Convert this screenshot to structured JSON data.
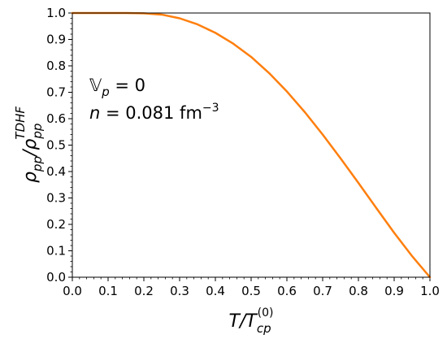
{
  "chart_data": {
    "type": "line",
    "title": "",
    "xlabel": "T/T",
    "xlabel_sub": "cp",
    "xlabel_sup": "(0)",
    "ylabel": "ρ",
    "ylabel_sub": "pp",
    "ylabel_slash": "/ρ",
    "ylabel_sub2": "pp",
    "ylabel_sup2": "TDHF",
    "xlim": [
      0.0,
      1.0
    ],
    "ylim": [
      0.0,
      1.0
    ],
    "grid": false,
    "legend": "none",
    "x_ticks": [
      "0.0",
      "0.1",
      "0.2",
      "0.3",
      "0.4",
      "0.5",
      "0.6",
      "0.7",
      "0.8",
      "0.9",
      "1.0"
    ],
    "y_ticks": [
      "0.0",
      "0.1",
      "0.2",
      "0.3",
      "0.4",
      "0.5",
      "0.6",
      "0.7",
      "0.8",
      "0.9",
      "1.0"
    ],
    "annotations": {
      "line1_symbol": "𝕍",
      "line1_sub": "p",
      "line1_rest": " = 0",
      "line2_n": "n",
      "line2_eq": " =  0.081 fm",
      "line2_sup": "−3"
    },
    "series": [
      {
        "color": "#ff7f0e",
        "x": [
          0.0,
          0.05,
          0.1,
          0.15,
          0.2,
          0.25,
          0.3,
          0.35,
          0.4,
          0.45,
          0.5,
          0.55,
          0.6,
          0.65,
          0.7,
          0.75,
          0.8,
          0.85,
          0.9,
          0.95,
          1.0
        ],
        "y": [
          1.0,
          1.0,
          1.0,
          1.0,
          0.999,
          0.994,
          0.98,
          0.957,
          0.925,
          0.884,
          0.834,
          0.773,
          0.703,
          0.625,
          0.54,
          0.45,
          0.357,
          0.262,
          0.168,
          0.08,
          0.0
        ]
      }
    ]
  }
}
